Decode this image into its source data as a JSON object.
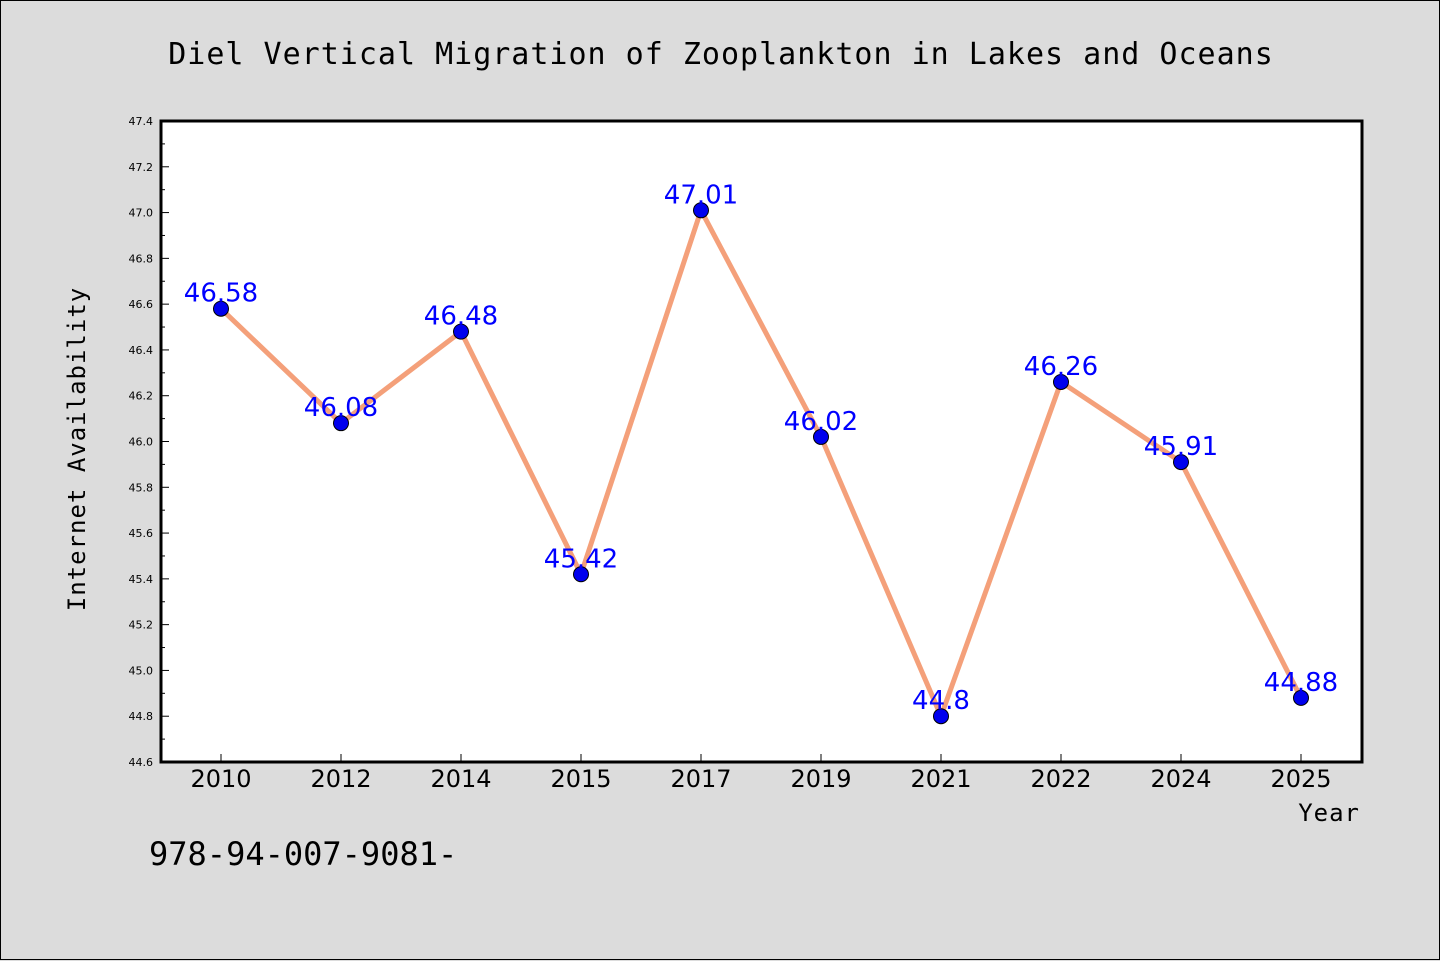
{
  "chart_data": {
    "type": "line",
    "title": "Diel Vertical Migration of Zooplankton in Lakes and Oceans",
    "xlabel": "Year",
    "ylabel": "Internet Availability",
    "categories": [
      "2010",
      "2012",
      "2014",
      "2015",
      "2017",
      "2019",
      "2021",
      "2022",
      "2024",
      "2025"
    ],
    "series": [
      {
        "values": [
          46.58,
          46.08,
          46.48,
          45.42,
          47.01,
          46.02,
          44.8,
          46.26,
          45.91,
          44.88
        ],
        "data_labels": [
          "46.58",
          "46.08",
          "46.48",
          "45.42",
          "47.01",
          "46.02",
          "44.8",
          "46.26",
          "45.91",
          "44.88"
        ],
        "line_color": "#f4a07a",
        "marker_color": "#0000ee"
      }
    ],
    "ylim": [
      44.6,
      47.4
    ],
    "yticks": [
      "44.6",
      "44.8",
      "45.0",
      "45.2",
      "45.4",
      "45.6",
      "45.8",
      "46.0",
      "46.2",
      "46.4",
      "46.6",
      "46.8",
      "47.0",
      "47.2",
      "47.4"
    ],
    "grid": false,
    "legend": false,
    "label_color": "#0000ff"
  },
  "footnote": "978-94-007-9081-",
  "colors": {
    "background": "#dcdcdc",
    "plot_background": "#ffffff"
  }
}
